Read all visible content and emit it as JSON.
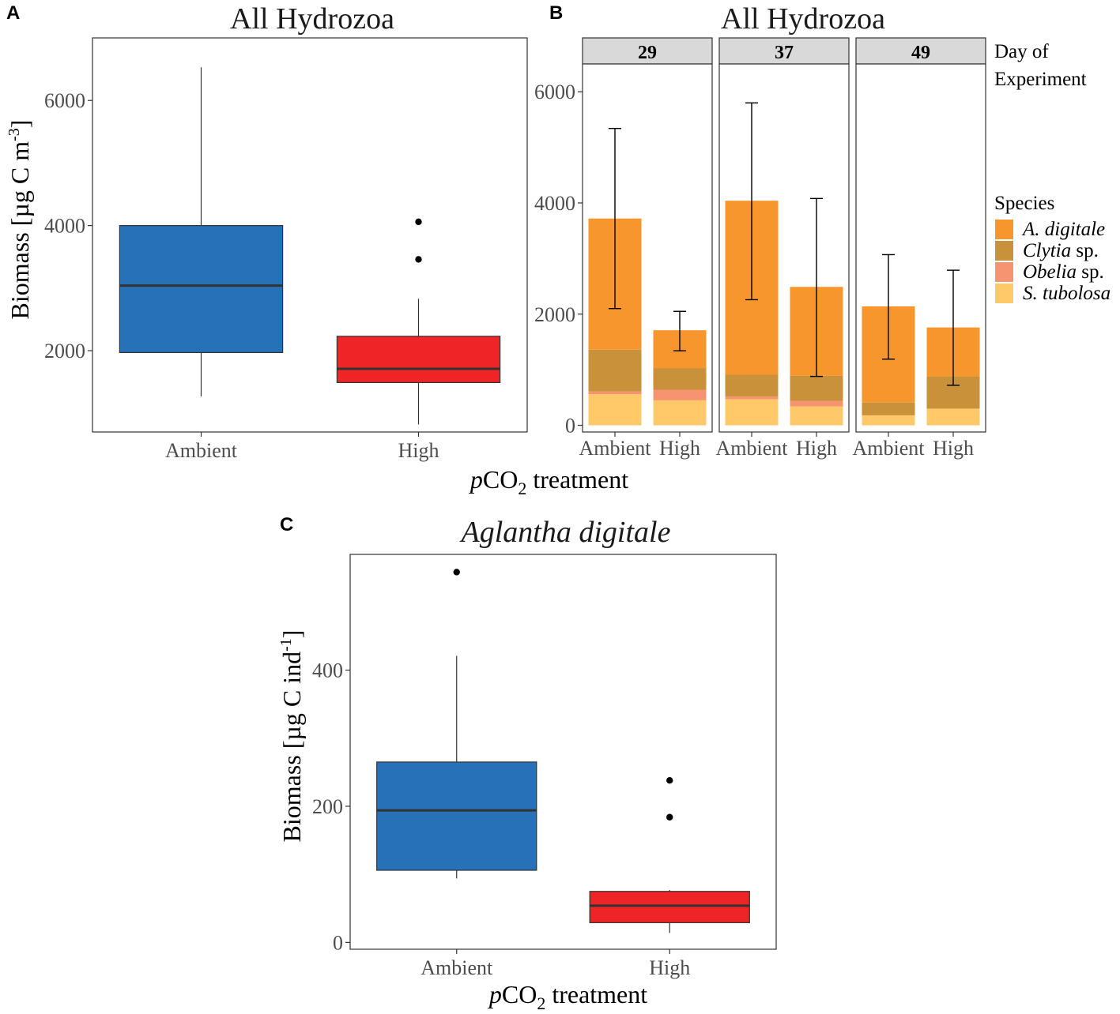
{
  "chart_data": [
    {
      "panel": "A",
      "type": "boxplot",
      "title": "All Hydrozoa",
      "ylabel": "Biomass [µg C m",
      "ylabel_sup": "-3",
      "ylabel_end": "]",
      "xlabel_italic": "p",
      "xlabel_main": "CO",
      "xlabel_sub": "2",
      "xlabel_rest": " treatment",
      "ylim": [
        700,
        7000
      ],
      "yticks": [
        2000,
        4000,
        6000
      ],
      "categories": [
        "Ambient",
        "High"
      ],
      "boxes": [
        {
          "name": "Ambient",
          "color": "#2771B9",
          "whisker_low": 1270,
          "q1": 1970,
          "median": 3040,
          "q3": 4000,
          "whisker_high": 6530,
          "outliers": []
        },
        {
          "name": "High",
          "color": "#EE2426",
          "whisker_low": 820,
          "q1": 1490,
          "median": 1710,
          "q3": 2230,
          "whisker_high": 2830,
          "outliers": [
            3460,
            4060
          ]
        }
      ]
    },
    {
      "panel": "B",
      "type": "stacked-bar",
      "title": "All Hydrozoa",
      "ylim": [
        -120,
        6500
      ],
      "yticks": [
        0,
        2000,
        4000,
        6000
      ],
      "facet_title": "Day of Experiment",
      "facets": [
        "29",
        "37",
        "49"
      ],
      "categories": [
        "Ambient",
        "High"
      ],
      "legend_title": "Species",
      "legend_position": "right",
      "series": [
        {
          "name": "S. tubolosa",
          "name_italic": "S. tubolosa",
          "name_rest": "",
          "color": "#FFC969",
          "values": [
            [
              560,
              450
            ],
            [
              470,
              340
            ],
            [
              180,
              300
            ]
          ]
        },
        {
          "name": "Obelia sp.",
          "name_italic": "Obelia",
          "name_rest": " sp.",
          "color": "#F69371",
          "values": [
            [
              50,
              190
            ],
            [
              50,
              100
            ],
            [
              0,
              0
            ]
          ]
        },
        {
          "name": "Clytia sp.",
          "name_italic": "Clytia",
          "name_rest": " sp.",
          "color": "#C9913A",
          "values": [
            [
              750,
              390
            ],
            [
              390,
              450
            ],
            [
              230,
              580
            ]
          ]
        },
        {
          "name": "A. digitale",
          "name_italic": "A. digitale",
          "name_rest": "",
          "color": "#F6962D",
          "values": [
            [
              2360,
              680
            ],
            [
              3130,
              1600
            ],
            [
              1730,
              880
            ]
          ]
        }
      ],
      "legend_order": [
        "A. digitale",
        "Clytia sp.",
        "Obelia sp.",
        "S. tubolosa"
      ],
      "error_bars": [
        [
          {
            "mean": 3720,
            "low": 2100,
            "high": 5340
          },
          {
            "mean": 1700,
            "low": 1340,
            "high": 2050
          }
        ],
        [
          {
            "mean": 4030,
            "low": 2260,
            "high": 5800
          },
          {
            "mean": 2490,
            "low": 880,
            "high": 4080
          }
        ],
        [
          {
            "mean": 2140,
            "low": 1190,
            "high": 3070
          },
          {
            "mean": 1760,
            "low": 720,
            "high": 2790
          }
        ]
      ]
    },
    {
      "panel": "C",
      "type": "boxplot",
      "title": "Aglantha digitale",
      "ylabel": "Biomass [µg C ind",
      "ylabel_sup": "-1",
      "ylabel_end": "]",
      "xlabel_italic": "p",
      "xlabel_main": "CO",
      "xlabel_sub": "2",
      "xlabel_rest": " treatment",
      "ylim": [
        -10,
        570
      ],
      "yticks": [
        0,
        200,
        400
      ],
      "categories": [
        "Ambient",
        "High"
      ],
      "boxes": [
        {
          "name": "Ambient",
          "color": "#2771B9",
          "whisker_low": 94,
          "q1": 106,
          "median": 194,
          "q3": 265,
          "whisker_high": 421,
          "outliers": [
            544
          ]
        },
        {
          "name": "High",
          "color": "#EE2426",
          "whisker_low": 14,
          "q1": 29,
          "median": 54,
          "q3": 75,
          "whisker_high": 77,
          "outliers": [
            184,
            238
          ]
        }
      ]
    }
  ]
}
